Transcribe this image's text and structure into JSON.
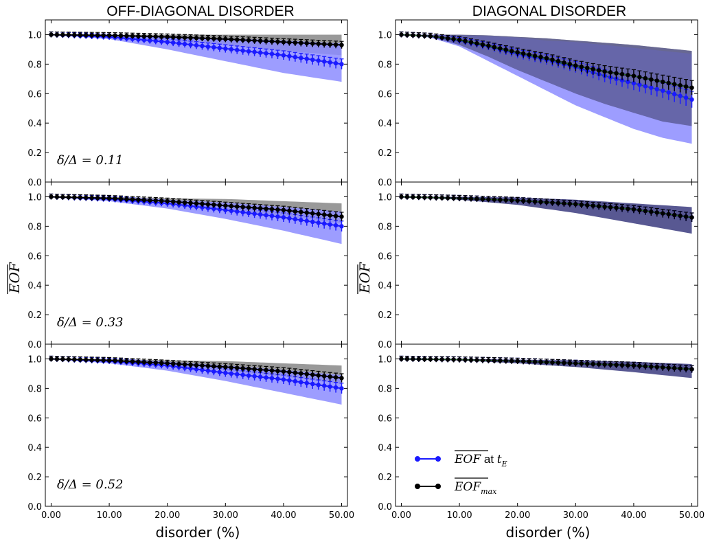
{
  "chart_data": {
    "type": "line",
    "columns": [
      {
        "title": "OFF-DIAGONAL DISORDER",
        "xlabel": "disorder (%)",
        "ylabel": "EOF",
        "ylabel_sub": "1000"
      },
      {
        "title": "DIAGONAL DISORDER",
        "xlabel": "disorder (%)",
        "ylabel": "EOF",
        "ylabel_sub": "1000"
      }
    ],
    "xlim": [
      -1,
      51
    ],
    "ylim": [
      0,
      1.1
    ],
    "xticks": [
      "0.00",
      "10.00",
      "20.00",
      "30.00",
      "40.00",
      "50.00"
    ],
    "yticks": [
      "0.0",
      "0.2",
      "0.4",
      "0.6",
      "0.8",
      "1.0"
    ],
    "row_labels": [
      "δ/Δ = 0.11",
      "δ/Δ = 0.33",
      "δ/Δ = 0.52"
    ],
    "series_styles": {
      "eof_tE": {
        "color": "#1a1aff",
        "band": "#8c8cff"
      },
      "eof_max": {
        "color": "#000000",
        "band": "#999999"
      },
      "overlap_band": "#585892",
      "diag_line": "#2e7d32"
    },
    "legend": {
      "position": "lower-left",
      "entries": [
        {
          "series": "eof_tE",
          "label": "EOF",
          "suffix": " at ",
          "math": "t",
          "sub": "E"
        },
        {
          "series": "eof_max",
          "label": "EOF",
          "suffix": "",
          "math": "",
          "sub": "max"
        }
      ]
    },
    "panels": [
      {
        "row": 0,
        "col": 0,
        "x": [
          0,
          10,
          20,
          30,
          40,
          50
        ],
        "eof_tE": {
          "values": [
            1.0,
            0.985,
            0.95,
            0.905,
            0.86,
            0.8
          ],
          "lower": [
            1.0,
            0.97,
            0.9,
            0.82,
            0.74,
            0.68
          ],
          "upper": [
            1.0,
            0.995,
            0.99,
            0.975,
            0.96,
            0.94
          ]
        },
        "eof_max": {
          "values": [
            1.0,
            0.995,
            0.985,
            0.97,
            0.95,
            0.93
          ],
          "lower": [
            1.0,
            0.985,
            0.96,
            0.93,
            0.89,
            0.86
          ],
          "upper": [
            1.0,
            1.0,
            1.0,
            1.0,
            1.0,
            1.0
          ]
        }
      },
      {
        "row": 0,
        "col": 1,
        "x": [
          0,
          5,
          10,
          15,
          20,
          25,
          30,
          35,
          40,
          45,
          50
        ],
        "eof_tE": {
          "values": [
            1.0,
            0.99,
            0.96,
            0.92,
            0.87,
            0.83,
            0.78,
            0.72,
            0.67,
            0.62,
            0.56
          ],
          "lower": [
            1.0,
            0.98,
            0.92,
            0.82,
            0.72,
            0.62,
            0.52,
            0.44,
            0.36,
            0.3,
            0.26
          ],
          "upper": [
            1.0,
            1.0,
            0.995,
            0.99,
            0.98,
            0.96,
            0.95,
            0.93,
            0.91,
            0.89,
            0.87
          ]
        },
        "eof_max": {
          "values": [
            1.0,
            0.99,
            0.965,
            0.925,
            0.88,
            0.84,
            0.79,
            0.75,
            0.72,
            0.68,
            0.64
          ],
          "lower": [
            1.0,
            0.985,
            0.93,
            0.85,
            0.76,
            0.68,
            0.6,
            0.53,
            0.47,
            0.41,
            0.38
          ],
          "upper": [
            1.0,
            1.0,
            1.0,
            0.995,
            0.985,
            0.975,
            0.96,
            0.945,
            0.93,
            0.91,
            0.89
          ]
        }
      },
      {
        "row": 1,
        "col": 0,
        "x": [
          0,
          10,
          20,
          30,
          40,
          50
        ],
        "eof_tE": {
          "values": [
            1.0,
            0.985,
            0.955,
            0.91,
            0.86,
            0.8
          ],
          "lower": [
            1.0,
            0.97,
            0.92,
            0.85,
            0.77,
            0.68
          ],
          "upper": [
            1.0,
            0.995,
            0.98,
            0.96,
            0.93,
            0.9
          ]
        },
        "eof_max": {
          "values": [
            1.0,
            0.99,
            0.97,
            0.94,
            0.91,
            0.865
          ],
          "lower": [
            1.0,
            0.985,
            0.955,
            0.92,
            0.87,
            0.82
          ],
          "upper": [
            1.0,
            1.0,
            0.99,
            0.985,
            0.97,
            0.955
          ]
        }
      },
      {
        "row": 1,
        "col": 1,
        "x": [
          0,
          10,
          20,
          30,
          40,
          50
        ],
        "eof_tE": {
          "values": [
            1.0,
            0.99,
            0.975,
            0.95,
            0.915,
            0.86
          ],
          "lower": [
            1.0,
            0.98,
            0.945,
            0.89,
            0.82,
            0.75
          ],
          "upper": [
            1.0,
            1.0,
            0.995,
            0.98,
            0.955,
            0.93
          ]
        },
        "eof_max": {
          "values": [
            1.0,
            0.99,
            0.975,
            0.95,
            0.915,
            0.86
          ],
          "lower": [
            1.0,
            0.98,
            0.945,
            0.89,
            0.82,
            0.75
          ],
          "upper": [
            1.0,
            1.0,
            0.995,
            0.98,
            0.955,
            0.93
          ]
        }
      },
      {
        "row": 2,
        "col": 0,
        "x": [
          0,
          10,
          20,
          30,
          40,
          50
        ],
        "eof_tE": {
          "values": [
            1.0,
            0.985,
            0.955,
            0.905,
            0.86,
            0.8
          ],
          "lower": [
            1.0,
            0.97,
            0.92,
            0.85,
            0.77,
            0.69
          ],
          "upper": [
            1.0,
            0.995,
            0.98,
            0.955,
            0.925,
            0.89
          ]
        },
        "eof_max": {
          "values": [
            1.0,
            0.99,
            0.97,
            0.945,
            0.915,
            0.87
          ],
          "lower": [
            1.0,
            0.985,
            0.955,
            0.92,
            0.88,
            0.83
          ],
          "upper": [
            1.0,
            1.0,
            0.99,
            0.985,
            0.97,
            0.955
          ]
        }
      },
      {
        "row": 2,
        "col": 1,
        "x": [
          0,
          10,
          20,
          30,
          40,
          50
        ],
        "eof_tE": {
          "values": [
            1.0,
            0.995,
            0.985,
            0.97,
            0.955,
            0.93
          ],
          "lower": [
            1.0,
            0.99,
            0.97,
            0.945,
            0.91,
            0.87
          ],
          "upper": [
            1.0,
            1.0,
            0.995,
            0.99,
            0.98,
            0.965
          ]
        },
        "eof_max": {
          "values": [
            1.0,
            0.995,
            0.985,
            0.97,
            0.955,
            0.93
          ],
          "lower": [
            1.0,
            0.99,
            0.97,
            0.945,
            0.91,
            0.87
          ],
          "upper": [
            1.0,
            1.0,
            0.995,
            0.99,
            0.98,
            0.965
          ]
        }
      }
    ]
  }
}
